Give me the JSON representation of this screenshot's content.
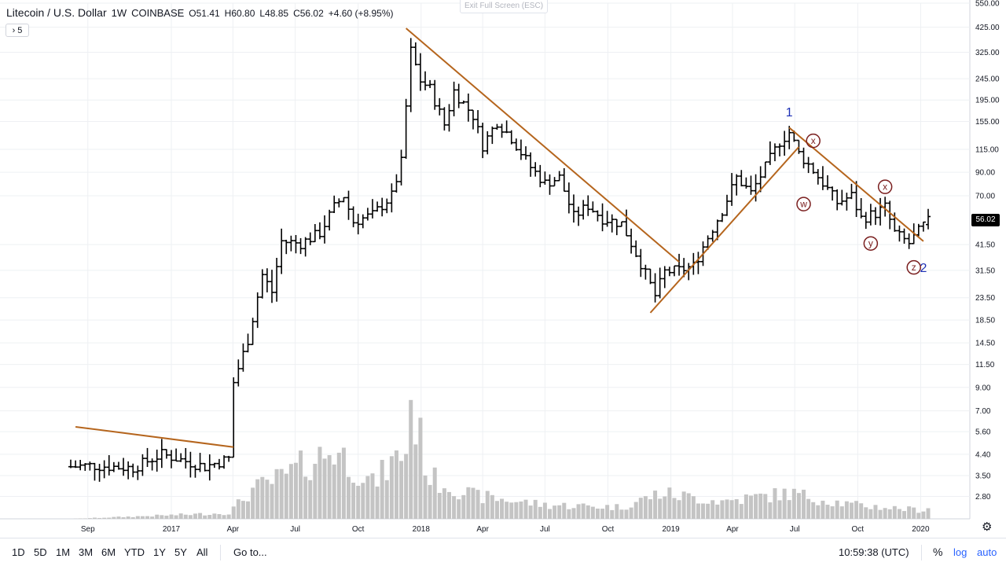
{
  "header": {
    "title": "Litecoin / U.S. Dollar",
    "interval": "1W",
    "exchange": "COINBASE",
    "open": "O51.41",
    "high": "H60.80",
    "low": "L48.85",
    "close": "C56.02",
    "change": "+4.60 (+8.95%)",
    "collapse_count": "5"
  },
  "exit_fullscreen": "Exit Full Screen (ESC)",
  "price_tag": "56.02",
  "toolbar": {
    "ranges": [
      "1D",
      "5D",
      "1M",
      "3M",
      "6M",
      "YTD",
      "1Y",
      "5Y",
      "All"
    ],
    "goto": "Go to...",
    "clock": "10:59:38 (UTC)",
    "percent": "%",
    "log": "log",
    "auto": "auto"
  },
  "annotations": {
    "wave_1": "1",
    "wave_2": "2",
    "w": "w",
    "x1": "x",
    "x2": "x",
    "y": "y",
    "z": "z"
  },
  "colors": {
    "candle": "#000000",
    "volume": "#c4c4c4",
    "trendline": "#b5651d",
    "wave_blue": "#1c2fb5",
    "wave_circle": "#7a1f1f",
    "grid": "#eef0f3"
  },
  "chart_data": {
    "type": "ohlc",
    "scale": "log",
    "ylim": [
      2.5,
      550
    ],
    "y_ticks": [
      "550.00",
      "425.00",
      "325.00",
      "245.00",
      "195.00",
      "155.00",
      "115.00",
      "90.00",
      "70.00",
      "56.02",
      "41.50",
      "31.50",
      "23.50",
      "18.50",
      "14.50",
      "11.50",
      "9.00",
      "7.00",
      "5.60",
      "4.40",
      "3.50",
      "2.80"
    ],
    "x_ticks": [
      "Sep",
      "2017",
      "Apr",
      "Jul",
      "Oct",
      "2018",
      "Apr",
      "Jul",
      "Oct",
      "2019",
      "Apr",
      "Jul",
      "Oct",
      "2020"
    ],
    "date_range": [
      "2016-08-07",
      "2020-01-12"
    ],
    "anchors": [
      {
        "date": "2016-08-07",
        "price": 3.85
      },
      {
        "date": "2016-09-04",
        "price": 3.9
      },
      {
        "date": "2016-11-06",
        "price": 3.8
      },
      {
        "date": "2016-12-18",
        "price": 4.4
      },
      {
        "date": "2017-02-19",
        "price": 3.85
      },
      {
        "date": "2017-03-26",
        "price": 4.2
      },
      {
        "date": "2017-04-02",
        "price": 9.5
      },
      {
        "date": "2017-04-23",
        "price": 15.0
      },
      {
        "date": "2017-05-14",
        "price": 30.0
      },
      {
        "date": "2017-05-28",
        "price": 25.0
      },
      {
        "date": "2017-06-11",
        "price": 43.0
      },
      {
        "date": "2017-07-09",
        "price": 42.0
      },
      {
        "date": "2017-08-06",
        "price": 47.0
      },
      {
        "date": "2017-08-27",
        "price": 62.0
      },
      {
        "date": "2017-09-10",
        "price": 70.0
      },
      {
        "date": "2017-09-24",
        "price": 53.0
      },
      {
        "date": "2017-10-22",
        "price": 57.0
      },
      {
        "date": "2017-11-19",
        "price": 70.0
      },
      {
        "date": "2017-12-03",
        "price": 100.0
      },
      {
        "date": "2017-12-17",
        "price": 330.0
      },
      {
        "date": "2017-12-31",
        "price": 240.0
      },
      {
        "date": "2018-01-14",
        "price": 220.0
      },
      {
        "date": "2018-02-04",
        "price": 150.0
      },
      {
        "date": "2018-02-18",
        "price": 215.0
      },
      {
        "date": "2018-03-18",
        "price": 165.0
      },
      {
        "date": "2018-04-01",
        "price": 120.0
      },
      {
        "date": "2018-04-22",
        "price": 155.0
      },
      {
        "date": "2018-05-13",
        "price": 130.0
      },
      {
        "date": "2018-06-10",
        "price": 95.0
      },
      {
        "date": "2018-07-01",
        "price": 80.0
      },
      {
        "date": "2018-07-22",
        "price": 85.0
      },
      {
        "date": "2018-08-12",
        "price": 56.0
      },
      {
        "date": "2018-09-02",
        "price": 63.0
      },
      {
        "date": "2018-09-23",
        "price": 55.0
      },
      {
        "date": "2018-10-21",
        "price": 52.0
      },
      {
        "date": "2018-11-18",
        "price": 34.0
      },
      {
        "date": "2018-12-09",
        "price": 24.0
      },
      {
        "date": "2018-12-23",
        "price": 31.0
      },
      {
        "date": "2019-01-13",
        "price": 31.5
      },
      {
        "date": "2019-02-03",
        "price": 33.0
      },
      {
        "date": "2019-02-24",
        "price": 45.0
      },
      {
        "date": "2019-03-17",
        "price": 60.0
      },
      {
        "date": "2019-04-07",
        "price": 85.0
      },
      {
        "date": "2019-04-28",
        "price": 72.0
      },
      {
        "date": "2019-05-19",
        "price": 95.0
      },
      {
        "date": "2019-06-09",
        "price": 125.0
      },
      {
        "date": "2019-06-23",
        "price": 138.0
      },
      {
        "date": "2019-07-07",
        "price": 110.0
      },
      {
        "date": "2019-07-28",
        "price": 92.0
      },
      {
        "date": "2019-08-18",
        "price": 75.0
      },
      {
        "date": "2019-09-01",
        "price": 65.0
      },
      {
        "date": "2019-09-22",
        "price": 70.0
      },
      {
        "date": "2019-10-06",
        "price": 55.0
      },
      {
        "date": "2019-10-27",
        "price": 58.0
      },
      {
        "date": "2019-11-10",
        "price": 62.0
      },
      {
        "date": "2019-11-24",
        "price": 47.0
      },
      {
        "date": "2019-12-15",
        "price": 42.0
      },
      {
        "date": "2020-01-05",
        "price": 51.0
      },
      {
        "date": "2020-01-12",
        "price": 56.02
      }
    ],
    "volume_anchors": [
      {
        "date": "2016-08-07",
        "volume": 0.0
      },
      {
        "date": "2017-03-26",
        "volume": 0.05
      },
      {
        "date": "2017-04-30",
        "volume": 0.25
      },
      {
        "date": "2017-06-11",
        "volume": 0.35
      },
      {
        "date": "2017-08-27",
        "volume": 0.6
      },
      {
        "date": "2017-10-22",
        "volume": 0.3
      },
      {
        "date": "2017-12-10",
        "volume": 0.6
      },
      {
        "date": "2017-12-17",
        "volume": 1.0
      },
      {
        "date": "2018-01-14",
        "volume": 0.35
      },
      {
        "date": "2018-03-18",
        "volume": 0.2
      },
      {
        "date": "2018-07-01",
        "volume": 0.12
      },
      {
        "date": "2018-10-21",
        "volume": 0.1
      },
      {
        "date": "2018-12-16",
        "volume": 0.22
      },
      {
        "date": "2019-03-17",
        "volume": 0.15
      },
      {
        "date": "2019-06-23",
        "volume": 0.22
      },
      {
        "date": "2019-09-22",
        "volume": 0.12
      },
      {
        "date": "2020-01-12",
        "volume": 0.07
      }
    ],
    "trendlines": [
      {
        "from": {
          "date": "2016-08-14",
          "price": 5.9
        },
        "to": {
          "date": "2017-04-02",
          "price": 4.75
        }
      },
      {
        "from": {
          "date": "2017-12-10",
          "price": 420.0
        },
        "to": {
          "date": "2019-01-13",
          "price": 34.5
        }
      },
      {
        "from": {
          "date": "2018-12-02",
          "price": 20.0
        },
        "to": {
          "date": "2019-07-07",
          "price": 118.0
        }
      },
      {
        "from": {
          "date": "2019-06-23",
          "price": 145.0
        },
        "to": {
          "date": "2020-01-05",
          "price": 43.0
        }
      }
    ]
  }
}
